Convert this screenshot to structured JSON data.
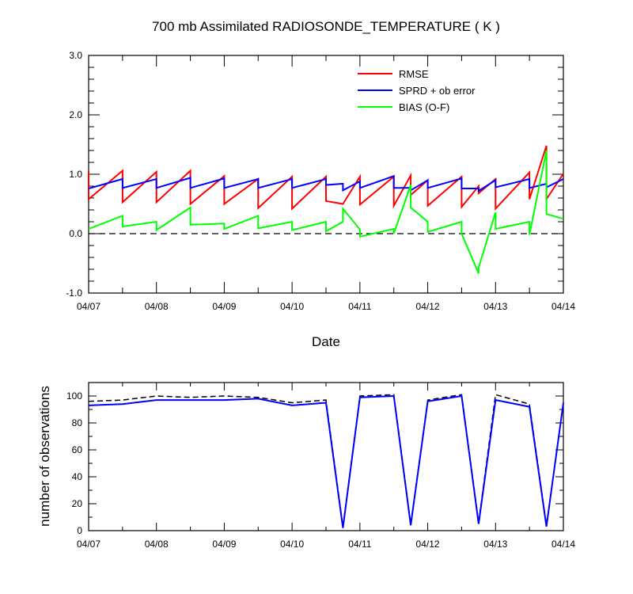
{
  "chart_data": [
    {
      "type": "line",
      "title": "700 mb Assimilated RADIOSONDE_TEMPERATURE ( K )",
      "xlabel": "Date",
      "ylabel": "",
      "xlim": [
        0,
        7
      ],
      "ylim": [
        -1.0,
        3.0
      ],
      "x_tick_labels": [
        "04/07",
        "04/08",
        "04/09",
        "04/10",
        "04/11",
        "04/12",
        "04/13",
        "04/14"
      ],
      "y_tick_labels": [
        "-1.0",
        "0.0",
        "1.0",
        "2.0",
        "3.0"
      ],
      "y_tick_values": [
        -1.0,
        0.0,
        1.0,
        2.0,
        3.0
      ],
      "reference_line": {
        "y": 0.0,
        "style": "dashed"
      },
      "legend": {
        "position": "top-right",
        "entries": [
          "RMSE",
          "SPRD + ob error",
          "BIAS (O-F)"
        ]
      },
      "series": [
        {
          "name": "RMSE",
          "color": "#ff0000",
          "points": [
            [
              0,
              1.06
            ],
            [
              0,
              0.58
            ],
            [
              0.5,
              1.06
            ],
            [
              0.5,
              0.53
            ],
            [
              1,
              1.04
            ],
            [
              1,
              0.53
            ],
            [
              1.5,
              1.06
            ],
            [
              1.5,
              0.5
            ],
            [
              2,
              0.97
            ],
            [
              2,
              0.5
            ],
            [
              2.5,
              0.92
            ],
            [
              2.5,
              0.43
            ],
            [
              3,
              0.96
            ],
            [
              3,
              0.42
            ],
            [
              3.5,
              0.96
            ],
            [
              3.5,
              0.55
            ],
            [
              3.75,
              0.5
            ],
            [
              3.75,
              0.5
            ],
            [
              4,
              0.96
            ],
            [
              4,
              0.49
            ],
            [
              4.5,
              0.96
            ],
            [
              4.5,
              0.47
            ],
            [
              4.75,
              0.98
            ],
            [
              4.75,
              0.65
            ],
            [
              5,
              0.9
            ],
            [
              5,
              0.47
            ],
            [
              5.5,
              0.96
            ],
            [
              5.5,
              0.45
            ],
            [
              5.75,
              0.8
            ],
            [
              5.75,
              0.68
            ],
            [
              6,
              0.92
            ],
            [
              6,
              0.42
            ],
            [
              6.5,
              1.03
            ],
            [
              6.5,
              0.58
            ],
            [
              6.75,
              1.48
            ],
            [
              6.75,
              0.58
            ],
            [
              7,
              1.01
            ]
          ]
        },
        {
          "name": "SPRD + ob error",
          "color": "#0000ff",
          "points": [
            [
              0,
              0.76
            ],
            [
              0.5,
              0.92
            ],
            [
              0.5,
              0.77
            ],
            [
              1,
              0.92
            ],
            [
              1,
              0.77
            ],
            [
              1.5,
              0.94
            ],
            [
              1.5,
              0.77
            ],
            [
              2,
              0.93
            ],
            [
              2,
              0.77
            ],
            [
              2.5,
              0.92
            ],
            [
              2.5,
              0.77
            ],
            [
              3,
              0.92
            ],
            [
              3,
              0.77
            ],
            [
              3.5,
              0.92
            ],
            [
              3.5,
              0.82
            ],
            [
              3.75,
              0.84
            ],
            [
              3.75,
              0.73
            ],
            [
              4,
              0.88
            ],
            [
              4,
              0.77
            ],
            [
              4.5,
              0.97
            ],
            [
              4.5,
              0.77
            ],
            [
              4.75,
              0.77
            ],
            [
              4.75,
              0.73
            ],
            [
              5,
              0.9
            ],
            [
              5,
              0.77
            ],
            [
              5.5,
              0.93
            ],
            [
              5.5,
              0.76
            ],
            [
              5.75,
              0.76
            ],
            [
              5.75,
              0.72
            ],
            [
              6,
              0.9
            ],
            [
              6,
              0.78
            ],
            [
              6.5,
              0.92
            ],
            [
              6.5,
              0.77
            ],
            [
              6.75,
              0.84
            ],
            [
              6.75,
              0.78
            ],
            [
              7,
              0.92
            ]
          ]
        },
        {
          "name": "BIAS (O-F)",
          "color": "#00ff00",
          "points": [
            [
              0,
              0.08
            ],
            [
              0.5,
              0.3
            ],
            [
              0.5,
              0.12
            ],
            [
              1,
              0.2
            ],
            [
              1,
              0.06
            ],
            [
              1.5,
              0.44
            ],
            [
              1.5,
              0.15
            ],
            [
              2,
              0.17
            ],
            [
              2,
              0.08
            ],
            [
              2.5,
              0.3
            ],
            [
              2.5,
              0.09
            ],
            [
              3,
              0.2
            ],
            [
              3,
              0.06
            ],
            [
              3.5,
              0.2
            ],
            [
              3.5,
              0.04
            ],
            [
              3.75,
              0.2
            ],
            [
              3.75,
              0.42
            ],
            [
              4,
              0.07
            ],
            [
              4,
              -0.05
            ],
            [
              4.5,
              0.08
            ],
            [
              4.5,
              0.0
            ],
            [
              4.75,
              0.82
            ],
            [
              4.75,
              0.44
            ],
            [
              5,
              0.2
            ],
            [
              5,
              0.03
            ],
            [
              5.5,
              0.2
            ],
            [
              5.5,
              0.0
            ],
            [
              5.75,
              -0.67
            ],
            [
              5.75,
              -0.57
            ],
            [
              6,
              0.36
            ],
            [
              6,
              0.08
            ],
            [
              6.5,
              0.2
            ],
            [
              6.5,
              -0.02
            ],
            [
              6.75,
              1.4
            ],
            [
              6.75,
              0.33
            ],
            [
              7,
              0.25
            ]
          ]
        }
      ]
    },
    {
      "type": "line",
      "title": "",
      "xlabel": "",
      "ylabel": "number of observations",
      "xlim": [
        0,
        7
      ],
      "ylim": [
        0,
        110
      ],
      "x_tick_labels": [
        "04/07",
        "04/08",
        "04/09",
        "04/10",
        "04/11",
        "04/12",
        "04/13",
        "04/14"
      ],
      "y_tick_labels": [
        "0",
        "20",
        "40",
        "60",
        "80",
        "100"
      ],
      "y_tick_values": [
        0,
        20,
        40,
        60,
        80,
        100
      ],
      "series": [
        {
          "name": "",
          "color": "#000000",
          "style": "dashed",
          "points": [
            [
              0,
              96
            ],
            [
              0.5,
              97
            ],
            [
              1,
              100
            ],
            [
              1.5,
              99
            ],
            [
              2,
              100
            ],
            [
              2.5,
              99
            ],
            [
              3,
              95
            ],
            [
              3.5,
              97
            ],
            [
              3.75,
              3
            ],
            [
              4,
              100
            ],
            [
              4.5,
              101
            ],
            [
              4.75,
              5
            ],
            [
              5,
              97
            ],
            [
              5.5,
              101
            ],
            [
              5.75,
              6
            ],
            [
              6,
              101
            ],
            [
              6.5,
              94
            ],
            [
              6.75,
              4
            ],
            [
              7,
              95
            ]
          ]
        },
        {
          "name": "",
          "color": "#0000ff",
          "style": "solid",
          "points": [
            [
              0,
              93
            ],
            [
              0.5,
              94
            ],
            [
              1,
              97
            ],
            [
              1.5,
              97
            ],
            [
              2,
              97
            ],
            [
              2.5,
              98
            ],
            [
              3,
              93
            ],
            [
              3.5,
              95
            ],
            [
              3.75,
              2
            ],
            [
              4,
              99
            ],
            [
              4.5,
              100
            ],
            [
              4.75,
              4
            ],
            [
              5,
              96
            ],
            [
              5.5,
              100
            ],
            [
              5.75,
              5
            ],
            [
              6,
              97
            ],
            [
              6.5,
              92
            ],
            [
              6.75,
              3
            ],
            [
              7,
              95
            ]
          ]
        }
      ]
    }
  ]
}
